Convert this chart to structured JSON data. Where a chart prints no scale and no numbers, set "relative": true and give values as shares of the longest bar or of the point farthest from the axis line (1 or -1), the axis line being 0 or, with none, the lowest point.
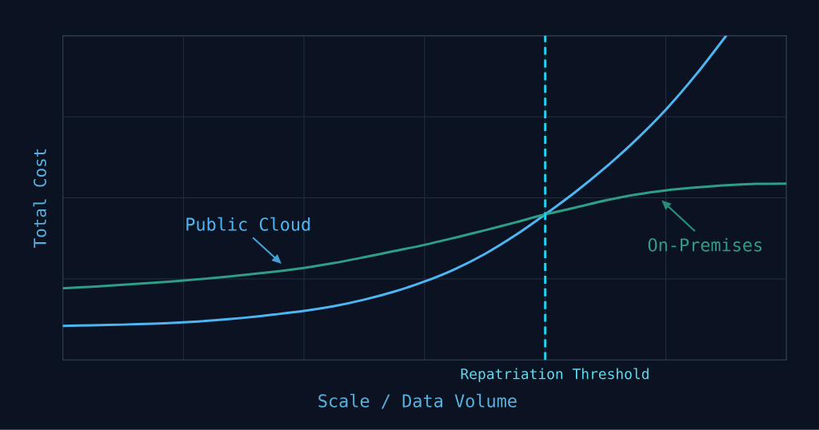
{
  "chart_data": {
    "type": "line",
    "relative": true,
    "xlabel": "Scale / Data Volume",
    "ylabel": "Total Cost",
    "grid": true,
    "categories": [
      null,
      null,
      null,
      null,
      null,
      null,
      null,
      null,
      null,
      null,
      null,
      null,
      null,
      null,
      null,
      null,
      null,
      null,
      null,
      null,
      null,
      null,
      null,
      null,
      null
    ],
    "series": [
      {
        "name": "Public Cloud",
        "color": "#4db6f2",
        "values": [
          0.105,
          0.107,
          0.109,
          0.112,
          0.116,
          0.122,
          0.13,
          0.14,
          0.151,
          0.166,
          0.186,
          0.211,
          0.242,
          0.28,
          0.327,
          0.384,
          0.449,
          0.518,
          0.594,
          0.678,
          0.772,
          0.88,
          1.0,
          null,
          null
        ]
      },
      {
        "name": "On-Premises",
        "color": "#2e9e86",
        "values": [
          0.221,
          0.226,
          0.232,
          0.238,
          0.245,
          0.253,
          0.262,
          0.272,
          0.284,
          0.299,
          0.317,
          0.336,
          0.355,
          0.377,
          0.4,
          0.424,
          0.449,
          0.47,
          0.492,
          0.51,
          0.523,
          0.532,
          0.539,
          0.543,
          0.544
        ]
      }
    ],
    "annotations": [
      "Repatriation Threshold"
    ]
  }
}
